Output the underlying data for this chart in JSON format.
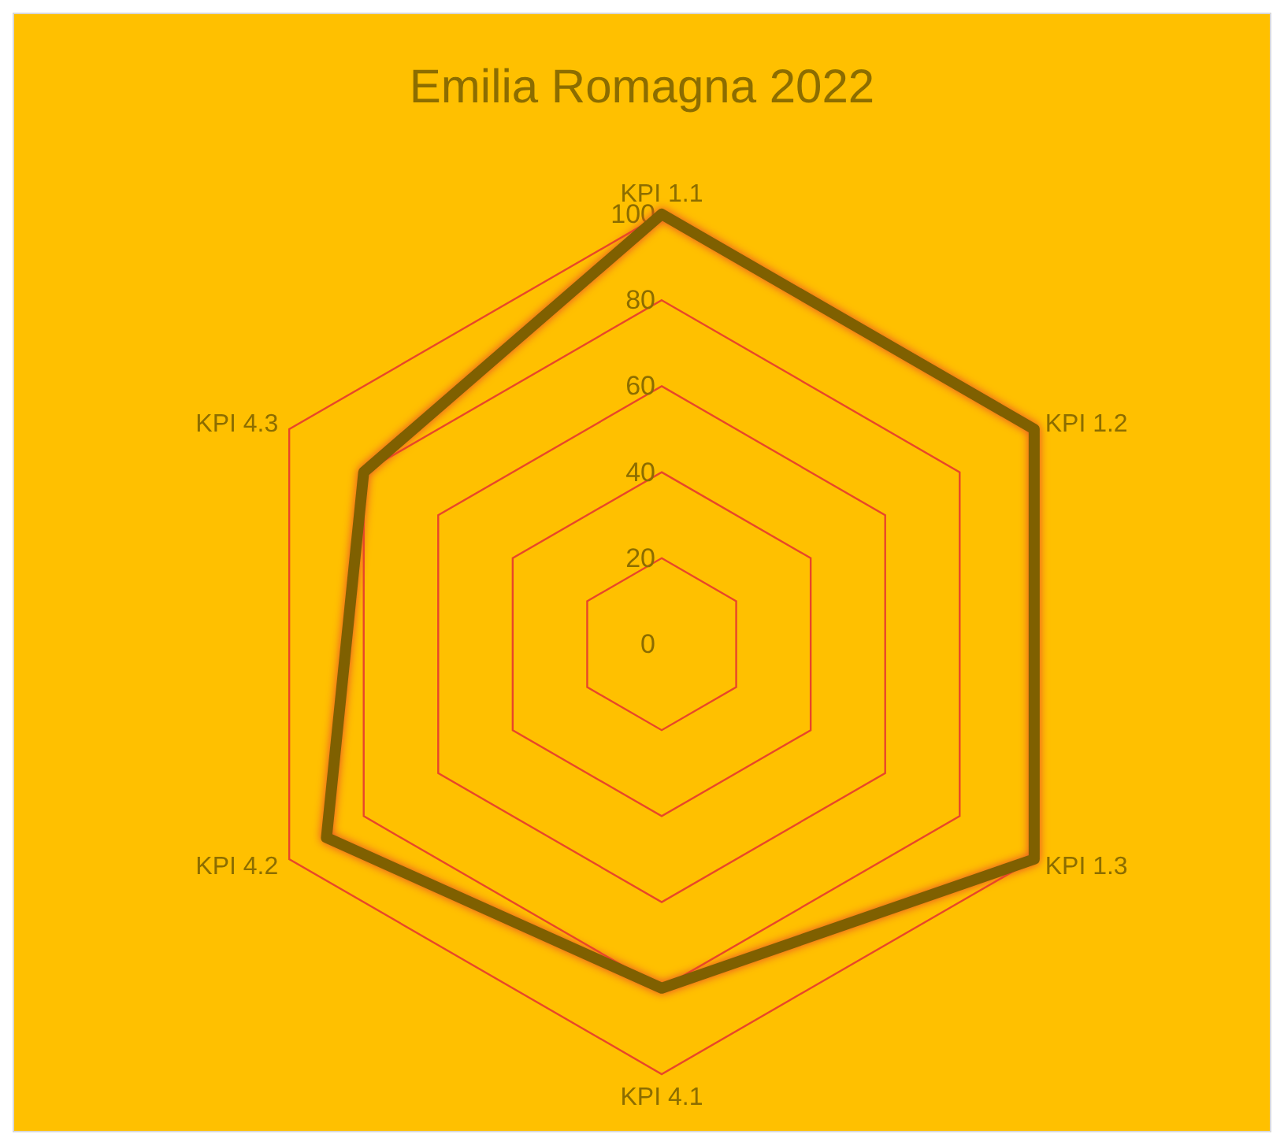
{
  "chart_data": {
    "type": "radar",
    "title": "Emilia Romagna 2022",
    "categories": [
      "KPI 1.1",
      "KPI 1.2",
      "KPI 1.3",
      "KPI 4.1",
      "KPI 4.2",
      "KPI 4.3"
    ],
    "series": [
      {
        "color": "#7f6000",
        "values": [
          100,
          100,
          100,
          80,
          90,
          80
        ]
      }
    ],
    "ylim": [
      0,
      100
    ],
    "yticks": [
      0,
      20,
      40,
      60,
      80,
      100
    ],
    "grid": true,
    "legend": false
  }
}
